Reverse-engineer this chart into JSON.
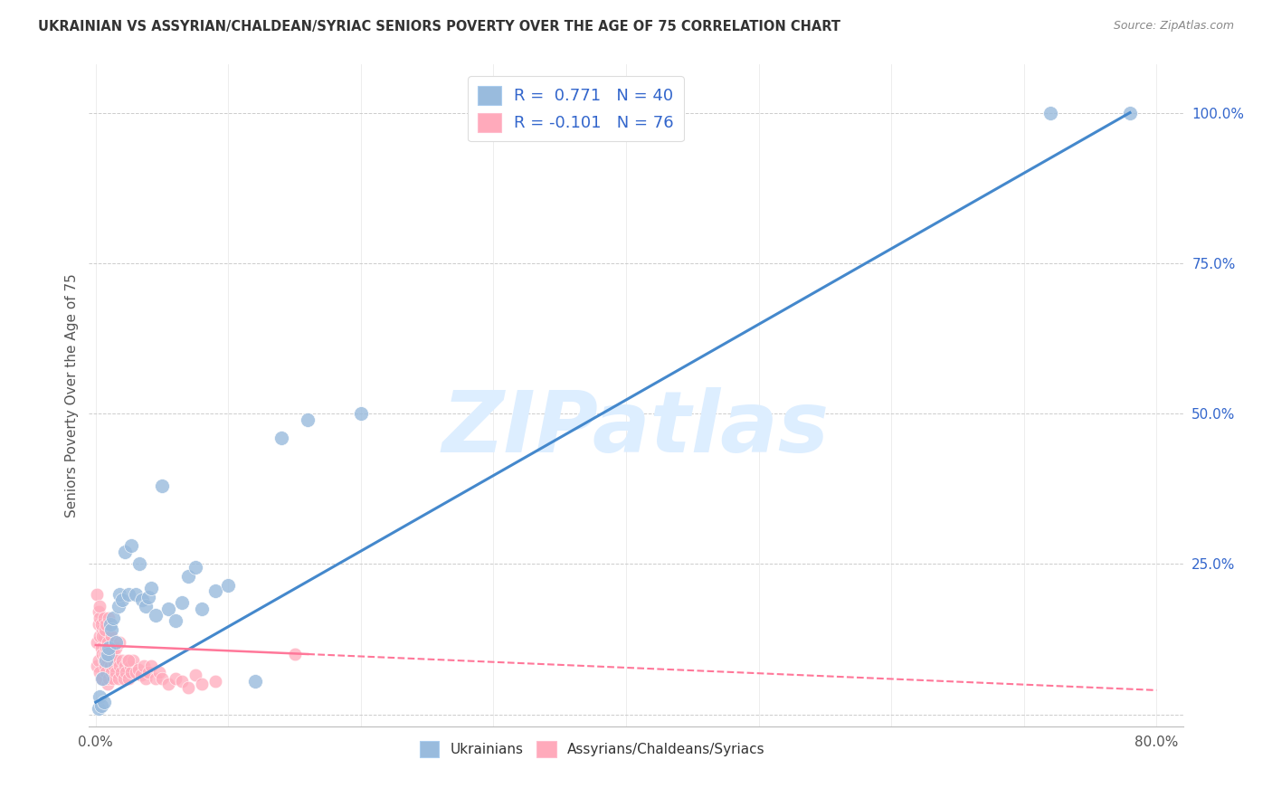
{
  "title": "UKRAINIAN VS ASSYRIAN/CHALDEAN/SYRIAC SENIORS POVERTY OVER THE AGE OF 75 CORRELATION CHART",
  "source": "Source: ZipAtlas.com",
  "xlabel": "",
  "ylabel": "Seniors Poverty Over the Age of 75",
  "xlim": [
    -0.005,
    0.82
  ],
  "ylim": [
    -0.02,
    1.08
  ],
  "xticks": [
    0.0,
    0.1,
    0.2,
    0.3,
    0.4,
    0.5,
    0.6,
    0.7,
    0.8
  ],
  "xticklabels": [
    "0.0%",
    "",
    "",
    "",
    "",
    "",
    "",
    "",
    "80.0%"
  ],
  "yticks_right": [
    0.0,
    0.25,
    0.5,
    0.75,
    1.0
  ],
  "yticklabels_right": [
    "",
    "25.0%",
    "50.0%",
    "75.0%",
    "100.0%"
  ],
  "legend_R1": "0.771",
  "legend_N1": "40",
  "legend_R2": "-0.101",
  "legend_N2": "76",
  "blue_color": "#99BBDD",
  "pink_color": "#FFAABB",
  "trend_blue_color": "#4488CC",
  "trend_pink_color": "#FF7799",
  "watermark_color": "#DDEEFF",
  "watermark_text": "ZIPatlas",
  "title_fontsize": 10.5,
  "ukr_trend_x0": 0.0,
  "ukr_trend_y0": 0.02,
  "ukr_trend_x1": 0.78,
  "ukr_trend_y1": 1.0,
  "ass_trend_x0": 0.0,
  "ass_trend_y0": 0.115,
  "ass_trend_x1": 0.8,
  "ass_trend_y1": 0.04,
  "ukrainian_x": [
    0.002,
    0.003,
    0.004,
    0.005,
    0.006,
    0.008,
    0.009,
    0.01,
    0.011,
    0.012,
    0.013,
    0.015,
    0.017,
    0.018,
    0.02,
    0.022,
    0.025,
    0.027,
    0.03,
    0.033,
    0.035,
    0.038,
    0.04,
    0.042,
    0.045,
    0.05,
    0.055,
    0.06,
    0.065,
    0.07,
    0.075,
    0.08,
    0.09,
    0.1,
    0.12,
    0.14,
    0.16,
    0.2,
    0.72,
    0.78
  ],
  "ukrainian_y": [
    0.01,
    0.03,
    0.015,
    0.06,
    0.02,
    0.09,
    0.1,
    0.11,
    0.15,
    0.14,
    0.16,
    0.12,
    0.18,
    0.2,
    0.19,
    0.27,
    0.2,
    0.28,
    0.2,
    0.25,
    0.19,
    0.18,
    0.195,
    0.21,
    0.165,
    0.38,
    0.175,
    0.155,
    0.185,
    0.23,
    0.245,
    0.175,
    0.205,
    0.215,
    0.055,
    0.46,
    0.49,
    0.5,
    1.0,
    1.0
  ],
  "assyrian_x": [
    0.001,
    0.001,
    0.002,
    0.002,
    0.003,
    0.003,
    0.004,
    0.004,
    0.005,
    0.005,
    0.005,
    0.006,
    0.006,
    0.007,
    0.007,
    0.008,
    0.008,
    0.009,
    0.009,
    0.01,
    0.01,
    0.011,
    0.011,
    0.012,
    0.012,
    0.013,
    0.013,
    0.014,
    0.014,
    0.015,
    0.016,
    0.017,
    0.018,
    0.019,
    0.02,
    0.021,
    0.022,
    0.023,
    0.024,
    0.025,
    0.026,
    0.027,
    0.028,
    0.03,
    0.032,
    0.034,
    0.036,
    0.038,
    0.04,
    0.042,
    0.045,
    0.048,
    0.05,
    0.055,
    0.06,
    0.065,
    0.07,
    0.075,
    0.08,
    0.09,
    0.001,
    0.002,
    0.003,
    0.003,
    0.004,
    0.005,
    0.006,
    0.007,
    0.008,
    0.009,
    0.01,
    0.012,
    0.015,
    0.018,
    0.025,
    0.15
  ],
  "assyrian_y": [
    0.12,
    0.08,
    0.15,
    0.09,
    0.13,
    0.07,
    0.11,
    0.06,
    0.1,
    0.14,
    0.06,
    0.09,
    0.13,
    0.08,
    0.1,
    0.07,
    0.11,
    0.05,
    0.09,
    0.13,
    0.06,
    0.08,
    0.1,
    0.07,
    0.11,
    0.06,
    0.09,
    0.08,
    0.1,
    0.07,
    0.09,
    0.06,
    0.08,
    0.07,
    0.09,
    0.06,
    0.08,
    0.07,
    0.09,
    0.06,
    0.08,
    0.07,
    0.09,
    0.07,
    0.075,
    0.065,
    0.08,
    0.06,
    0.07,
    0.08,
    0.06,
    0.07,
    0.06,
    0.05,
    0.06,
    0.055,
    0.045,
    0.065,
    0.05,
    0.055,
    0.2,
    0.17,
    0.16,
    0.18,
    0.15,
    0.13,
    0.16,
    0.14,
    0.15,
    0.12,
    0.16,
    0.13,
    0.11,
    0.12,
    0.09,
    0.1
  ]
}
